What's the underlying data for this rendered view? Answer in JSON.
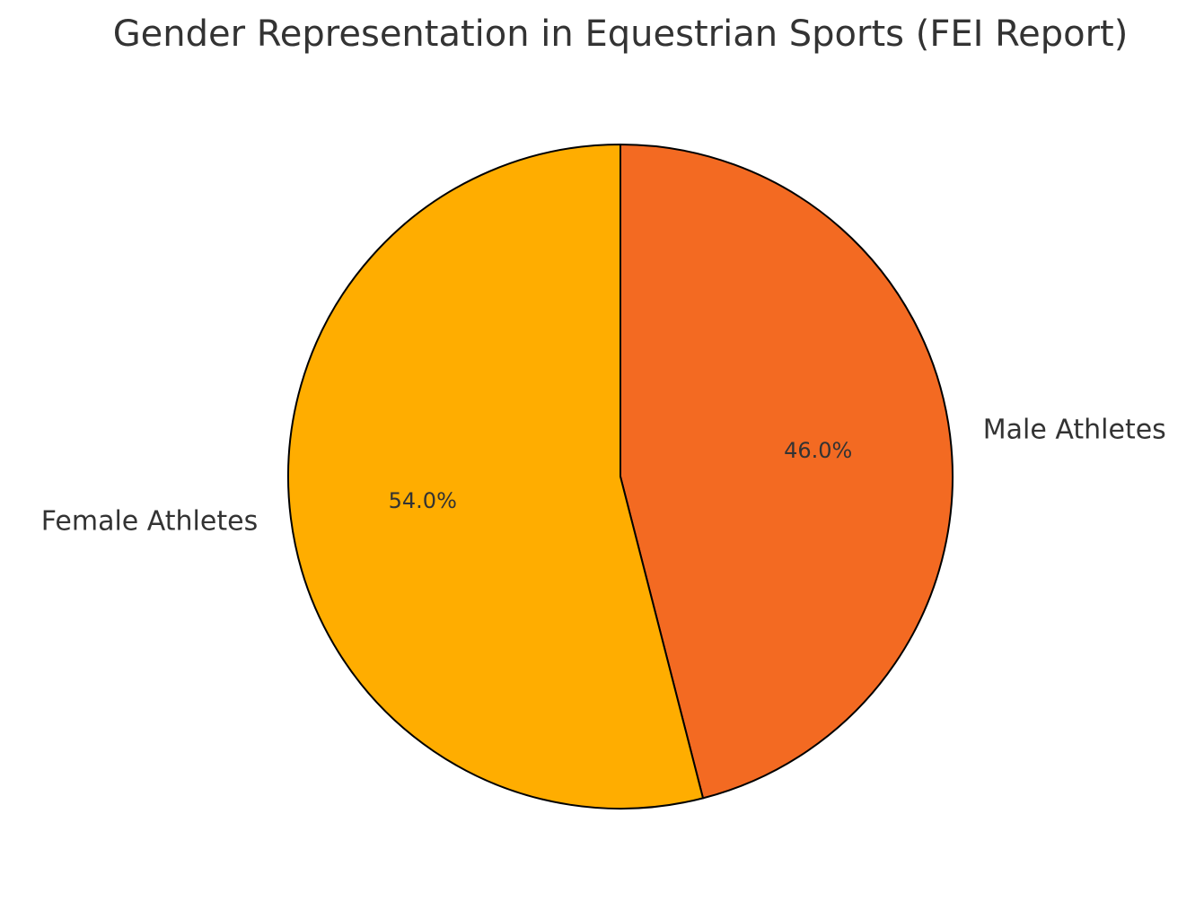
{
  "chart_data": {
    "type": "pie",
    "title": "Gender Representation in Equestrian Sports (FEI Report)",
    "categories": [
      "Male Athletes",
      "Female Athletes"
    ],
    "values": [
      46,
      54
    ],
    "value_labels": [
      "46.0%",
      "54.0%"
    ],
    "colors": [
      "#f36a22",
      "#ffad00"
    ]
  }
}
